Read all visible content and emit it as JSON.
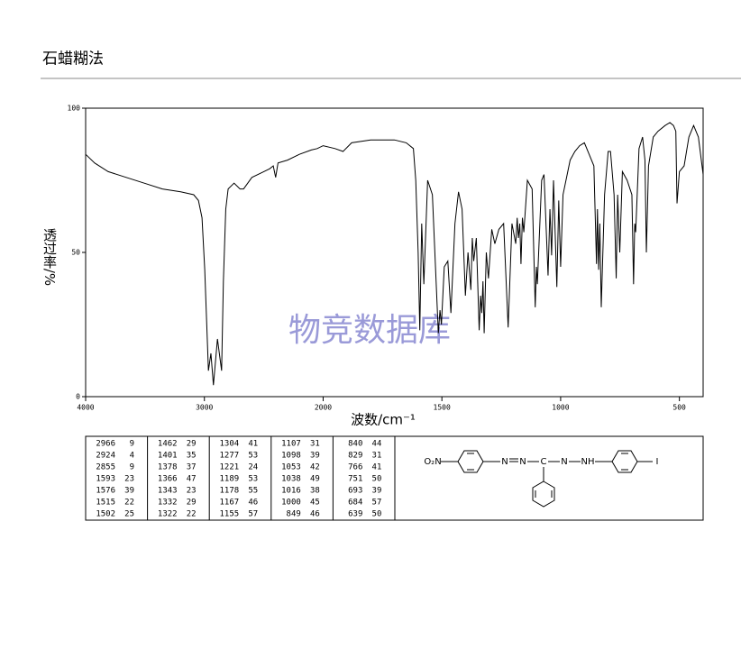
{
  "header": {
    "title": "石蜡糊法"
  },
  "chart_data": {
    "type": "line",
    "xlabel": "波数/cm⁻¹",
    "ylabel": "透过率/%",
    "watermark": "物竞数据库",
    "color": "#000000",
    "xlim": [
      4000,
      400
    ],
    "x_scale_change": 2000,
    "xticks": [
      4000,
      3000,
      2000,
      1500,
      1000,
      500
    ],
    "ylim": [
      0,
      100
    ],
    "yticks": [
      0,
      50,
      100
    ],
    "x": [
      4000,
      3924,
      3810,
      3658,
      3506,
      3354,
      3200,
      3090,
      3050,
      3020,
      2997,
      2966,
      2945,
      2924,
      2890,
      2855,
      2840,
      2820,
      2800,
      2750,
      2700,
      2670,
      2600,
      2500,
      2450,
      2420,
      2400,
      2380,
      2300,
      2200,
      2100,
      2050,
      2000,
      1950,
      1916,
      1880,
      1800,
      1700,
      1650,
      1620,
      1610,
      1600,
      1593,
      1585,
      1576,
      1560,
      1540,
      1515,
      1508,
      1502,
      1490,
      1475,
      1462,
      1445,
      1430,
      1415,
      1401,
      1390,
      1378,
      1372,
      1366,
      1355,
      1343,
      1337,
      1332,
      1327,
      1322,
      1313,
      1304,
      1290,
      1277,
      1260,
      1240,
      1221,
      1205,
      1189,
      1183,
      1178,
      1172,
      1167,
      1161,
      1155,
      1140,
      1120,
      1107,
      1102,
      1098,
      1080,
      1070,
      1053,
      1045,
      1038,
      1030,
      1016,
      1008,
      1000,
      990,
      960,
      940,
      920,
      900,
      880,
      860,
      849,
      845,
      840,
      835,
      829,
      815,
      800,
      790,
      775,
      766,
      760,
      751,
      740,
      720,
      700,
      693,
      688,
      684,
      670,
      655,
      645,
      639,
      630,
      610,
      590,
      560,
      540,
      525,
      515,
      510,
      500,
      480,
      460,
      440,
      420,
      400
    ],
    "values": [
      84,
      81,
      78,
      76,
      74,
      72,
      71,
      70,
      68,
      62,
      44,
      9,
      15,
      4,
      20,
      9,
      40,
      65,
      72,
      74,
      72,
      72,
      76,
      78,
      79,
      80,
      76,
      81,
      82,
      84,
      85.5,
      86,
      87,
      86,
      85,
      88,
      89,
      89,
      88,
      86,
      75,
      50,
      23,
      60,
      39,
      75,
      70,
      22,
      30,
      25,
      45,
      47,
      29,
      60,
      71,
      65,
      35,
      50,
      37,
      55,
      47,
      55,
      23,
      35,
      29,
      40,
      22,
      50,
      41,
      58,
      53,
      58,
      60,
      24,
      60,
      53,
      62,
      55,
      60,
      46,
      62,
      57,
      75,
      72,
      31,
      45,
      39,
      75,
      77,
      42,
      65,
      49,
      75,
      38,
      68,
      45,
      70,
      82,
      85,
      87,
      88,
      84,
      80,
      46,
      65,
      44,
      60,
      31,
      70,
      85,
      85,
      70,
      41,
      70,
      50,
      78,
      75,
      70,
      39,
      60,
      57,
      86,
      90,
      82,
      50,
      80,
      90,
      92,
      94,
      95,
      94,
      92,
      67,
      78,
      80,
      90,
      94,
      90,
      77
    ]
  },
  "peak_table": {
    "columns": [
      [
        [
          2966,
          9
        ],
        [
          2924,
          4
        ],
        [
          2855,
          9
        ],
        [
          1593,
          23
        ],
        [
          1576,
          39
        ],
        [
          1515,
          22
        ],
        [
          1502,
          25
        ]
      ],
      [
        [
          1462,
          29
        ],
        [
          1401,
          35
        ],
        [
          1378,
          37
        ],
        [
          1366,
          47
        ],
        [
          1343,
          23
        ],
        [
          1332,
          29
        ],
        [
          1322,
          22
        ]
      ],
      [
        [
          1304,
          41
        ],
        [
          1277,
          53
        ],
        [
          1221,
          24
        ],
        [
          1189,
          53
        ],
        [
          1178,
          55
        ],
        [
          1167,
          46
        ],
        [
          1155,
          57
        ]
      ],
      [
        [
          1107,
          31
        ],
        [
          1098,
          39
        ],
        [
          1053,
          42
        ],
        [
          1038,
          49
        ],
        [
          1016,
          38
        ],
        [
          1000,
          45
        ],
        [
          849,
          46
        ]
      ],
      [
        [
          840,
          44
        ],
        [
          829,
          31
        ],
        [
          766,
          41
        ],
        [
          751,
          50
        ],
        [
          693,
          39
        ],
        [
          684,
          57
        ],
        [
          639,
          50
        ]
      ]
    ]
  },
  "structure": {
    "labels": [
      "O₂N",
      "N",
      "N",
      "C",
      "N",
      "NH",
      "I"
    ]
  }
}
